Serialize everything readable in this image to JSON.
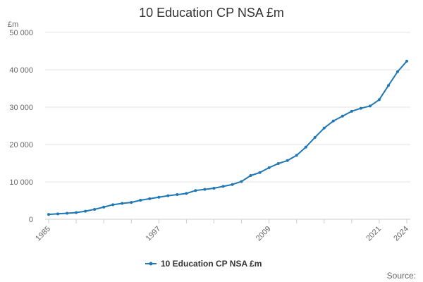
{
  "chart_data": {
    "type": "line",
    "title": "10 Education CP NSA £m",
    "ylabel": "£m",
    "xlabel": "",
    "ylim": [
      0,
      50000
    ],
    "xlim": [
      1985,
      2024
    ],
    "y_ticks": [
      0,
      10000,
      20000,
      30000,
      40000,
      50000
    ],
    "y_tick_labels": [
      "0",
      "10 000",
      "20 000",
      "30 000",
      "40 000",
      "50 000"
    ],
    "x_tick_labels": [
      "1985",
      "1997",
      "2009",
      "2021",
      "2024"
    ],
    "x_tick_values": [
      1985,
      1997,
      2009,
      2021,
      2024
    ],
    "x_minor_ticks": [
      1985,
      1988,
      1991,
      1994,
      1997,
      2000,
      2003,
      2006,
      2009,
      2012,
      2015,
      2018,
      2021,
      2024
    ],
    "grid": true,
    "legend_position": "bottom-center",
    "series": [
      {
        "name": "10 Education CP NSA £m",
        "color": "#1f77b4",
        "x": [
          1985,
          1986,
          1987,
          1988,
          1989,
          1990,
          1991,
          1992,
          1993,
          1994,
          1995,
          1996,
          1997,
          1998,
          1999,
          2000,
          2001,
          2002,
          2003,
          2004,
          2005,
          2006,
          2007,
          2008,
          2009,
          2010,
          2011,
          2012,
          2013,
          2014,
          2015,
          2016,
          2017,
          2018,
          2019,
          2020,
          2021,
          2022,
          2023,
          2024
        ],
        "values": [
          1300,
          1450,
          1600,
          1800,
          2150,
          2650,
          3250,
          3900,
          4250,
          4500,
          5100,
          5500,
          5900,
          6300,
          6600,
          6900,
          7700,
          8000,
          8300,
          8800,
          9300,
          10100,
          11700,
          12500,
          13800,
          14900,
          15700,
          17100,
          19300,
          21900,
          24400,
          26300,
          27600,
          28900,
          29700,
          30300,
          32000,
          35800,
          39500,
          42300
        ]
      }
    ]
  },
  "legend": {
    "label": "10 Education CP NSA £m"
  },
  "footer": {
    "source_label": "Source:"
  }
}
